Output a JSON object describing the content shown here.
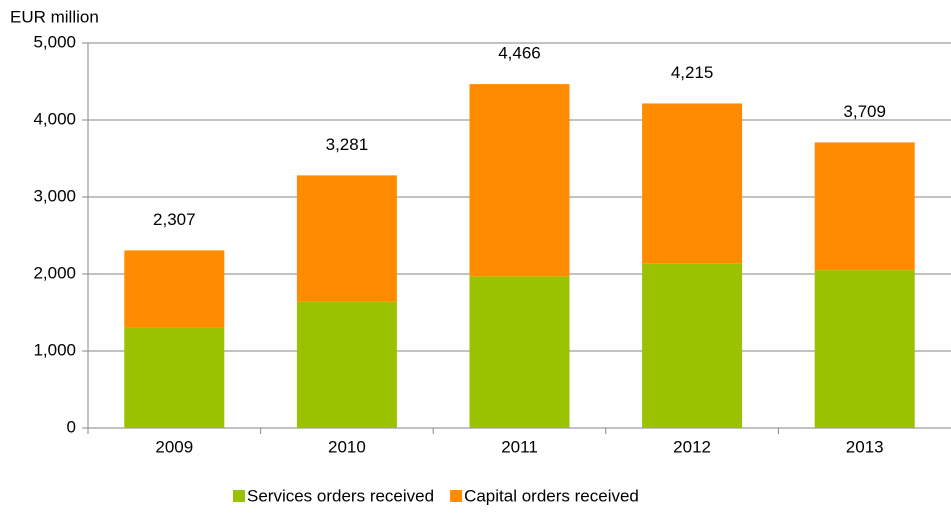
{
  "chart_data": {
    "type": "stacked_bar",
    "y_axis_label": "EUR million",
    "categories": [
      "2009",
      "2010",
      "2011",
      "2012",
      "2013"
    ],
    "series": [
      {
        "name": "Services orders received",
        "color": "#9bc200",
        "values": [
          1300,
          1640,
          1970,
          2140,
          2050
        ]
      },
      {
        "name": "Capital orders received",
        "color": "#ff8c00",
        "values": [
          1007,
          1641,
          2496,
          2075,
          1659
        ]
      }
    ],
    "totals": {
      "values": [
        2307,
        3281,
        4466,
        4215,
        3709
      ],
      "value_labels": [
        "2,307",
        "3,281",
        "4,466",
        "4,215",
        "3,709"
      ]
    },
    "ylim": [
      0,
      5000
    ],
    "yticks": [
      0,
      {
        "value": 1000,
        "label": "1,000"
      },
      {
        "value": 2000,
        "label": "2,000"
      },
      {
        "value": 3000,
        "label": "3,000"
      },
      {
        "value": 4000,
        "label": "4,000"
      },
      {
        "value": 5000,
        "label": "5,000"
      }
    ],
    "grid": true,
    "legend": "bottom"
  }
}
